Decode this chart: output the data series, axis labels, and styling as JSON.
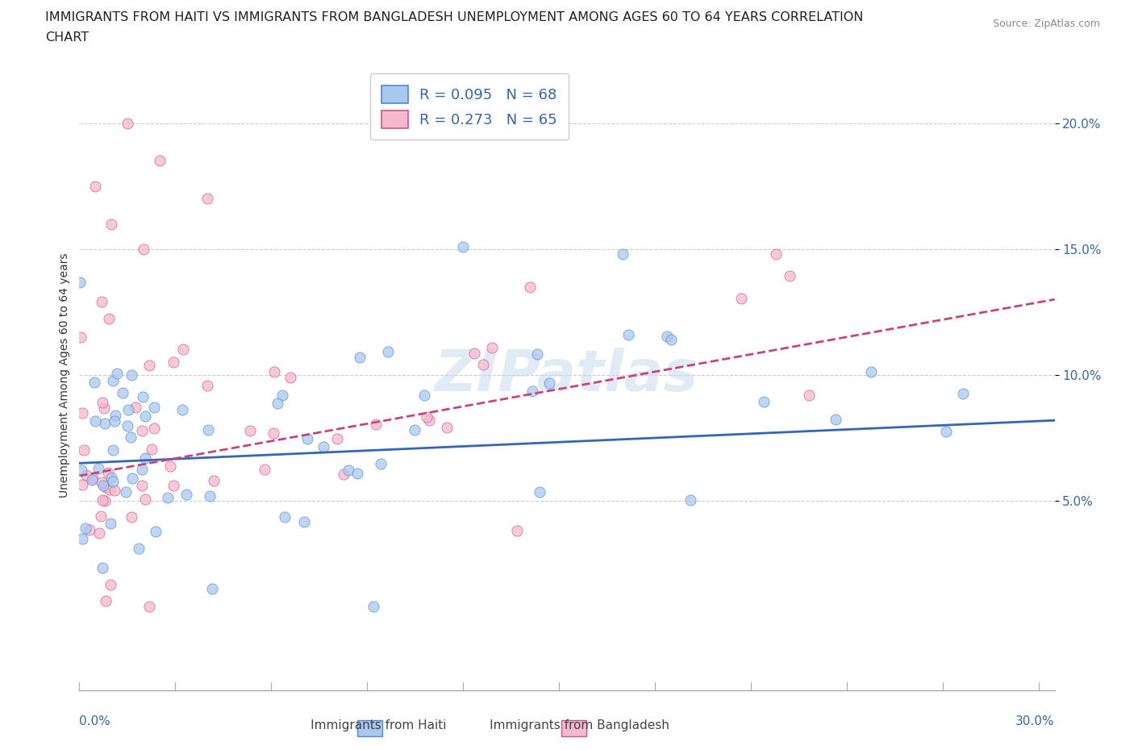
{
  "title_line1": "IMMIGRANTS FROM HAITI VS IMMIGRANTS FROM BANGLADESH UNEMPLOYMENT AMONG AGES 60 TO 64 YEARS CORRELATION",
  "title_line2": "CHART",
  "source": "Source: ZipAtlas.com",
  "ylabel": "Unemployment Among Ages 60 to 64 years",
  "yticks": [
    0.05,
    0.1,
    0.15,
    0.2
  ],
  "ytick_labels": [
    "5.0%",
    "10.0%",
    "15.0%",
    "20.0%"
  ],
  "xlim": [
    0.0,
    0.305
  ],
  "ylim": [
    -0.025,
    0.225
  ],
  "haiti_color": "#a8c8f0",
  "bangladesh_color": "#f5b8cc",
  "haiti_edge_color": "#5588cc",
  "bangladesh_edge_color": "#cc5588",
  "haiti_line_color": "#3366bb",
  "bangladesh_line_color": "#cc4477",
  "haiti_R": 0.095,
  "haiti_N": 68,
  "bangladesh_R": 0.273,
  "bangladesh_N": 65,
  "watermark": "ZIPatlas",
  "haiti_line_x0": 0.0,
  "haiti_line_y0": 0.065,
  "haiti_line_x1": 0.3,
  "haiti_line_y1": 0.082,
  "bangladesh_line_x0": 0.0,
  "bangladesh_line_y0": 0.06,
  "bangladesh_line_x1": 0.3,
  "bangladesh_line_y1": 0.13
}
